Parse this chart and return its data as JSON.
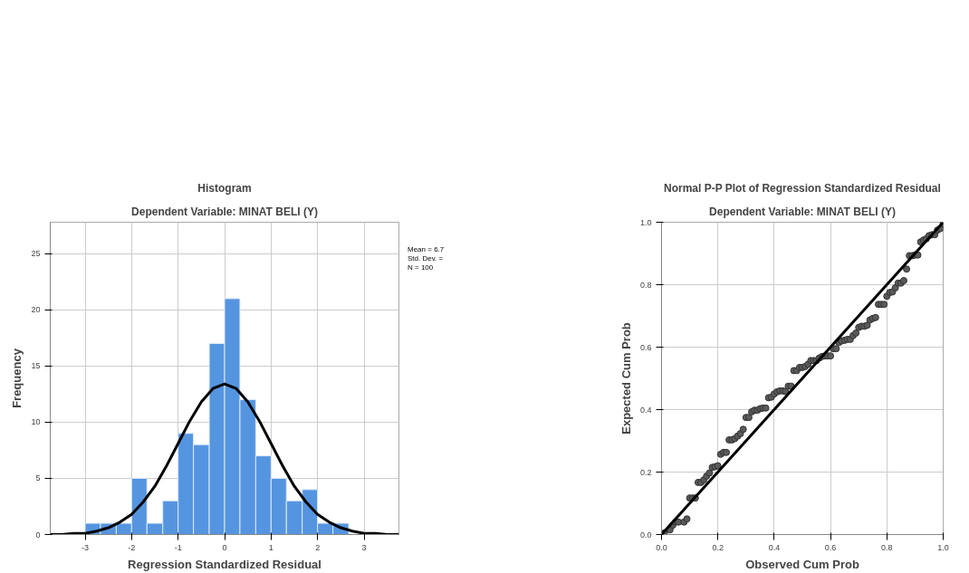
{
  "chart_data": [
    {
      "type": "histogram",
      "title": "Histogram",
      "subtitle": "Dependent Variable: MINAT BELI (Y)",
      "xlabel": "Regression Standardized Residual",
      "ylabel": "Frequency",
      "color": "#5595e0",
      "bins": [
        -3,
        -2.67,
        -2.33,
        -2,
        -1.67,
        -1.33,
        -1,
        -0.67,
        -0.33,
        0,
        0.33,
        0.67,
        1,
        1.33,
        1.67,
        2,
        2.33,
        2.67
      ],
      "values": [
        1,
        1,
        1,
        5,
        1,
        3,
        9,
        8,
        17,
        21,
        12,
        7,
        5,
        3,
        4,
        1,
        1
      ],
      "series": [
        {
          "type": "line",
          "color": "#000000",
          "x": [
            -3.75,
            -3.5,
            -3.25,
            -3,
            -2.75,
            -2.5,
            -2.25,
            -2,
            -1.75,
            -1.5,
            -1.25,
            -1,
            -0.75,
            -0.5,
            -0.25,
            0,
            0.25,
            0.5,
            0.75,
            1,
            1.25,
            1.5,
            1.75,
            2,
            2.25,
            2.5,
            2.75,
            3,
            3.25,
            3.5,
            3.75
          ],
          "values": [
            0,
            0,
            0.1,
            0.1,
            0.3,
            0.6,
            1.1,
            1.8,
            2.9,
            4.3,
            6.1,
            8.1,
            10.1,
            11.8,
            13,
            13.4,
            13,
            11.8,
            10.1,
            8.1,
            6.1,
            4.3,
            2.9,
            1.8,
            1.1,
            0.6,
            0.3,
            0.1,
            0.1,
            0,
            0
          ]
        }
      ],
      "xlim": [
        -3.75,
        3.75
      ],
      "ylim": [
        0,
        27.8
      ],
      "xticks": [
        -3,
        -2,
        -1,
        0,
        1,
        2,
        3
      ],
      "yticks": [
        0,
        5,
        10,
        15,
        20,
        25
      ],
      "grid": true,
      "annotations": [
        "Mean = 6.7",
        "Std. Dev. =",
        "N = 100"
      ]
    },
    {
      "type": "scatter",
      "title": "Normal P-P Plot of Regression Standardized Residual",
      "subtitle": "Dependent Variable: MINAT BELI (Y)",
      "xlabel": "Observed Cum Prob",
      "ylabel": "Expected Cum Prob",
      "grid": true,
      "xlim": [
        0,
        1
      ],
      "ylim": [
        0,
        1
      ],
      "xticks": [
        {
          "value": 0,
          "label": "0.0"
        },
        {
          "value": 0.2,
          "label": "0.2"
        },
        {
          "value": 0.4,
          "label": "0.4"
        },
        {
          "value": 0.6,
          "label": "0.6"
        },
        {
          "value": 0.8,
          "label": "0.8"
        },
        {
          "value": 1,
          "label": "1.0"
        }
      ],
      "yticks": [
        {
          "value": 0,
          "label": "0.0"
        },
        {
          "value": 0.2,
          "label": "0.2"
        },
        {
          "value": 0.4,
          "label": "0.4"
        },
        {
          "value": 0.6,
          "label": "0.6"
        },
        {
          "value": 0.8,
          "label": "0.8"
        },
        {
          "value": 1,
          "label": "1.0"
        }
      ],
      "series": [
        {
          "type": "scatter",
          "marker": "circle",
          "color": "#5a5a5a",
          "x": [
            0.01,
            0.03,
            0.04,
            0.05,
            0.06,
            0.08,
            0.09,
            0.1,
            0.11,
            0.12,
            0.13,
            0.14,
            0.15,
            0.16,
            0.17,
            0.18,
            0.19,
            0.2,
            0.21,
            0.22,
            0.23,
            0.24,
            0.25,
            0.26,
            0.27,
            0.28,
            0.29,
            0.3,
            0.31,
            0.32,
            0.33,
            0.34,
            0.35,
            0.36,
            0.37,
            0.38,
            0.39,
            0.4,
            0.41,
            0.42,
            0.43,
            0.44,
            0.45,
            0.46,
            0.47,
            0.48,
            0.49,
            0.5,
            0.51,
            0.52,
            0.53,
            0.54,
            0.55,
            0.56,
            0.57,
            0.58,
            0.59,
            0.6,
            0.61,
            0.62,
            0.63,
            0.64,
            0.65,
            0.66,
            0.67,
            0.68,
            0.69,
            0.7,
            0.71,
            0.72,
            0.73,
            0.74,
            0.75,
            0.76,
            0.77,
            0.78,
            0.79,
            0.8,
            0.81,
            0.82,
            0.83,
            0.84,
            0.85,
            0.86,
            0.87,
            0.88,
            0.89,
            0.9,
            0.91,
            0.92,
            0.93,
            0.94,
            0.95,
            0.96,
            0.97,
            0.98,
            0.99,
            1.0
          ],
          "values": [
            0.005,
            0.015,
            0.03,
            0.04,
            0.04,
            0.04,
            0.05,
            0.117,
            0.117,
            0.117,
            0.167,
            0.167,
            0.175,
            0.187,
            0.197,
            0.215,
            0.217,
            0.22,
            0.257,
            0.263,
            0.263,
            0.303,
            0.303,
            0.307,
            0.315,
            0.323,
            0.337,
            0.375,
            0.375,
            0.393,
            0.398,
            0.398,
            0.403,
            0.405,
            0.405,
            0.438,
            0.44,
            0.45,
            0.457,
            0.46,
            0.46,
            0.458,
            0.475,
            0.475,
            0.525,
            0.525,
            0.535,
            0.535,
            0.538,
            0.545,
            0.557,
            0.557,
            0.557,
            0.565,
            0.57,
            0.572,
            0.572,
            0.572,
            0.595,
            0.595,
            0.615,
            0.62,
            0.622,
            0.625,
            0.625,
            0.637,
            0.645,
            0.663,
            0.667,
            0.667,
            0.67,
            0.687,
            0.692,
            0.695,
            0.737,
            0.737,
            0.737,
            0.763,
            0.775,
            0.777,
            0.79,
            0.805,
            0.805,
            0.813,
            0.85,
            0.893,
            0.893,
            0.895,
            0.895,
            0.937,
            0.943,
            0.947,
            0.957,
            0.96,
            0.96,
            0.975,
            0.98,
            0.995
          ]
        },
        {
          "type": "line",
          "marker": "none",
          "color": "#000000",
          "x": [
            0,
            1
          ],
          "values": [
            0,
            1
          ]
        }
      ]
    }
  ]
}
